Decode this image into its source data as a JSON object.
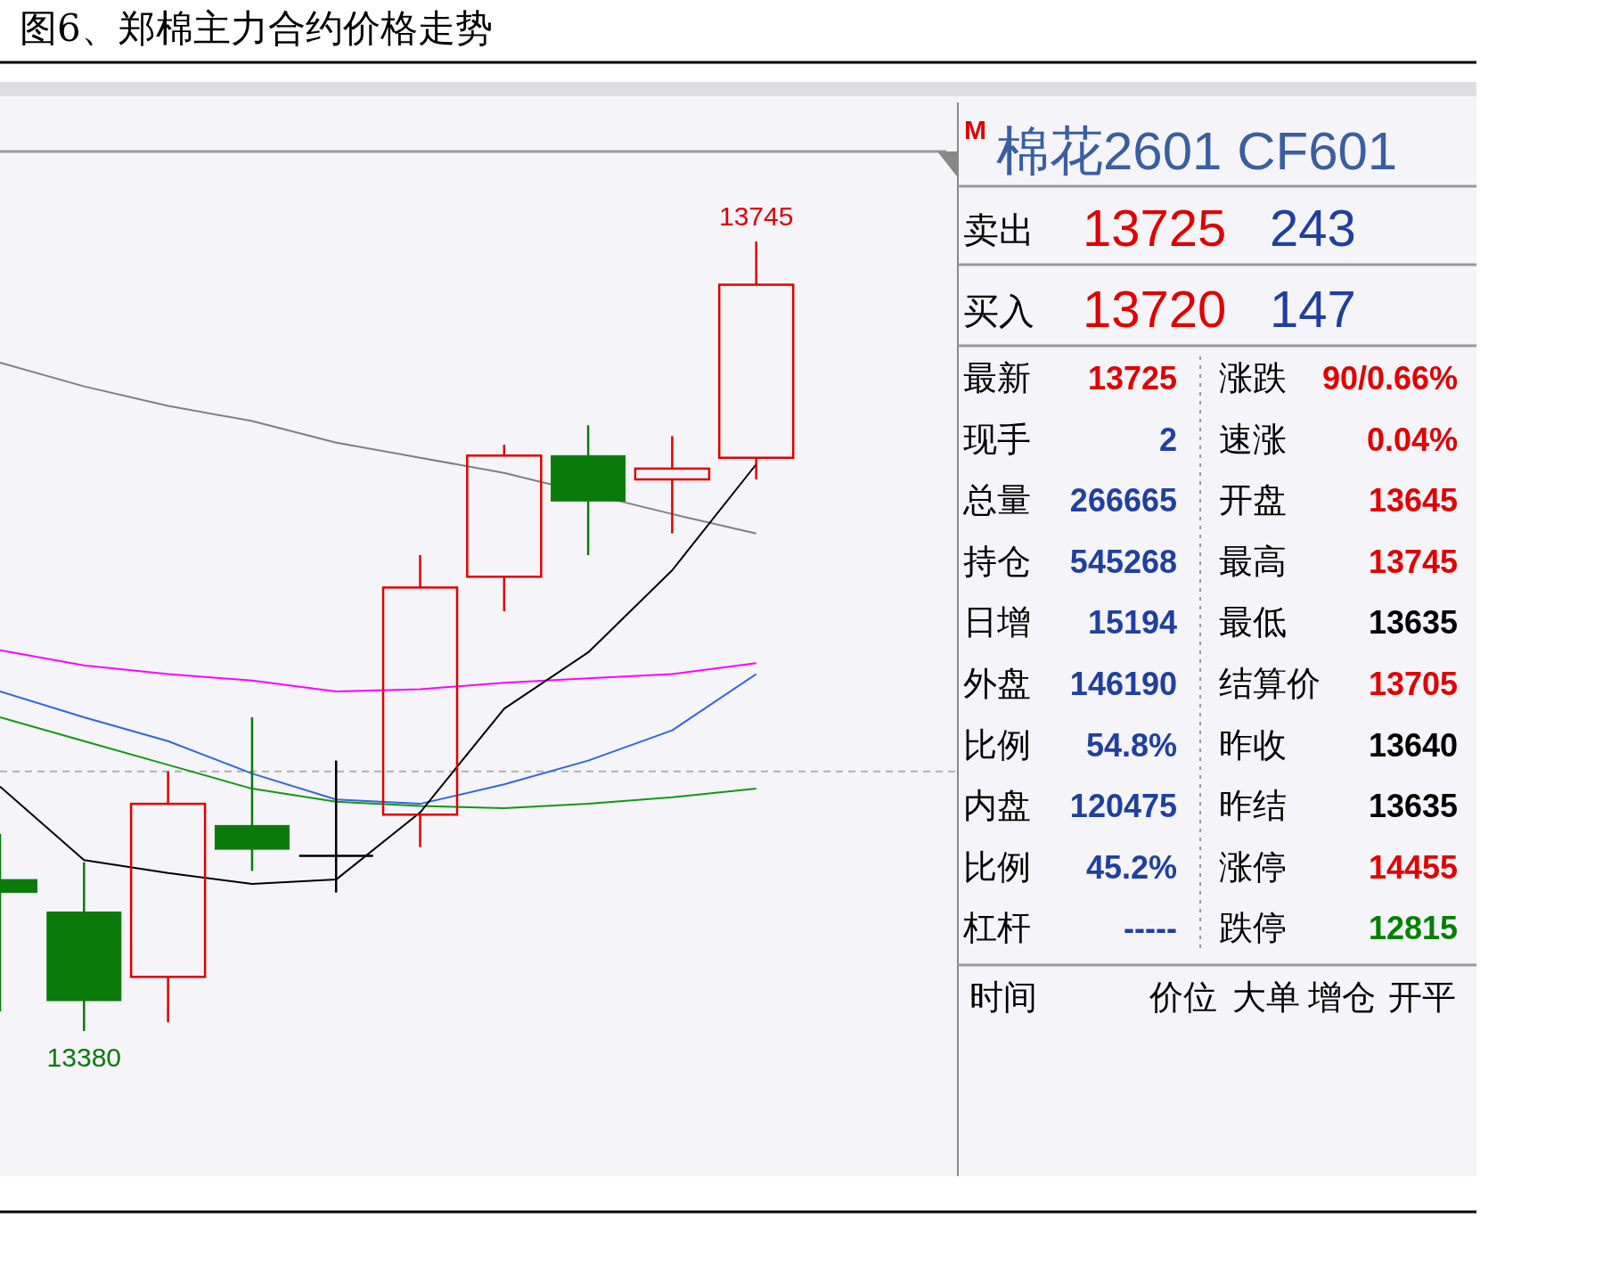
{
  "chart_data": [
    {
      "type": "candlestick",
      "title": "图6、郑棉主力合约价格走势",
      "categories": [
        null,
        null,
        null,
        null,
        null,
        null,
        null,
        null,
        null,
        null
      ],
      "ohlc": [
        [
          13450,
          13471,
          13389,
          13444
        ],
        [
          13435,
          13458,
          13380,
          13394
        ],
        [
          13405,
          13500,
          13384,
          13485
        ],
        [
          13475,
          13525,
          13454,
          13464
        ],
        [
          13461,
          13505,
          13444,
          13461
        ],
        [
          13480,
          13600,
          13465,
          13585
        ],
        [
          13590,
          13651,
          13574,
          13646
        ],
        [
          13646,
          13660,
          13600,
          13625
        ],
        [
          13635,
          13655,
          13610,
          13640
        ],
        [
          13645,
          13745,
          13635,
          13725
        ]
      ],
      "series": [
        {
          "type": "line",
          "color": "#808080",
          "values": [
            13689,
            13678,
            13669,
            13662,
            13652,
            13645,
            13638,
            null,
            13619,
            13610
          ]
        },
        {
          "type": "line",
          "color": "#ff00ff",
          "values": [
            13556,
            13549,
            13545,
            13542,
            13537,
            13538,
            13541,
            13543,
            13545,
            13550
          ]
        },
        {
          "type": "line",
          "color": "#3366dd",
          "values": [
            13537,
            13525,
            13514,
            13499,
            13487,
            13485,
            13494,
            13505,
            13519,
            13545
          ]
        },
        {
          "type": "line",
          "color": "#119911",
          "values": [
            13525,
            13514,
            13503,
            13492,
            13486,
            13484,
            13483,
            13485,
            13488,
            13492
          ]
        },
        {
          "type": "line",
          "color": "#000000",
          "values": [
            13493,
            13459,
            13453,
            13448,
            13450,
            13481,
            13529,
            13555,
            13593,
            13642
          ]
        }
      ],
      "ref_lines": [
        {
          "axis": "y",
          "value": 13500,
          "color": "#b0b0b0",
          "line_style": "dashed"
        }
      ],
      "annotations": [
        {
          "text": "13745",
          "y": 13745
        },
        {
          "text": "13380",
          "y": 13380
        }
      ]
    },
    {
      "type": "other",
      "title": "棉花2601  CF601",
      "annotations": [
        "M",
        "卖出",
        "13725",
        "243",
        "买入",
        "13720",
        "147",
        "最新",
        "13725",
        "涨跌",
        "90/0.66%",
        "现手",
        "2",
        "速涨",
        "0.04%",
        "总量",
        "266665",
        "开盘",
        "13645",
        "持仓",
        "545268",
        "最高",
        "13745",
        "日增",
        "15194",
        "最低",
        "13635",
        "外盘",
        "146190",
        "结算价",
        "13705",
        "比例",
        "54.8%",
        "昨收",
        "13640",
        "内盘",
        "120475",
        "昨结",
        "13635",
        "比例",
        "45.2%",
        "涨停",
        "14455",
        "杠杆",
        "-----",
        "跌停",
        "12815",
        "时间",
        "价位",
        "大单",
        "增仓",
        "开平"
      ],
      "colors": [
        "#e00000",
        "#000000",
        "#e00000",
        "#2040a0",
        "#000000",
        "#e00000",
        "#2040a0",
        "#000000",
        "#e00000",
        "#000000",
        "#e00000",
        "#000000",
        "#2040a0",
        "#000000",
        "#e00000",
        "#000000",
        "#2040a0",
        "#000000",
        "#e00000",
        "#000000",
        "#2040a0",
        "#000000",
        "#e00000",
        "#000000",
        "#2040a0",
        "#000000",
        "#000000",
        "#000000",
        "#2040a0",
        "#000000",
        "#e00000",
        "#000000",
        "#2040a0",
        "#000000",
        "#000000",
        "#000000",
        "#2040a0",
        "#000000",
        "#000000",
        "#000000",
        "#2040a0",
        "#000000",
        "#e00000",
        "#000000",
        "#2040a0",
        "#000000",
        "#008000",
        "#000000",
        "#000000",
        "#000000",
        "#000000",
        "#000000"
      ]
    }
  ]
}
